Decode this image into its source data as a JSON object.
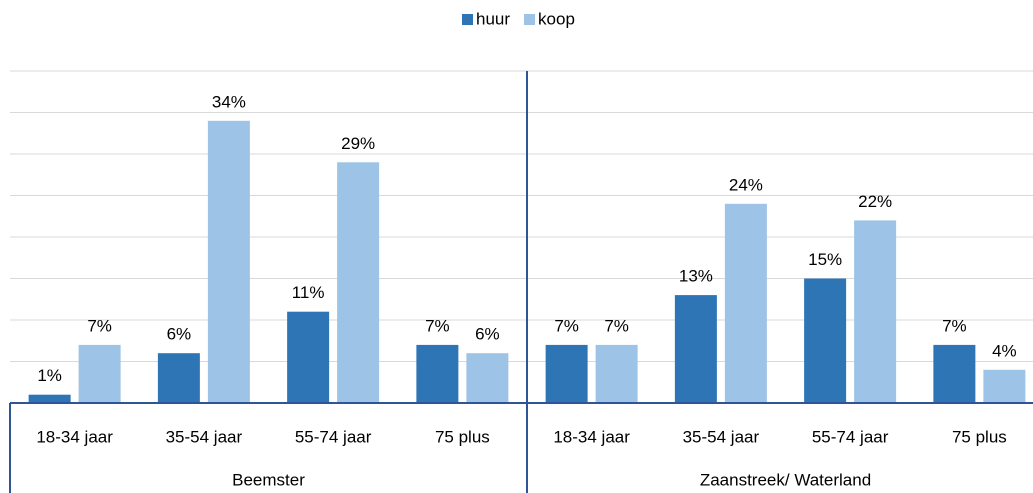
{
  "chart_data": {
    "type": "bar",
    "groups": [
      "Beemster",
      "Zaanstreek/ Waterland"
    ],
    "categories": [
      "18-34 jaar",
      "35-54 jaar",
      "55-74 jaar",
      "75 plus",
      "18-34 jaar",
      "35-54 jaar",
      "55-74 jaar",
      "75 plus"
    ],
    "series": [
      {
        "name": "huur",
        "color": "#2e75b6",
        "values": [
          1,
          6,
          11,
          7,
          7,
          13,
          15,
          7
        ],
        "value_labels": [
          "1%",
          "6%",
          "11%",
          "7%",
          "7%",
          "13%",
          "15%",
          "7%"
        ]
      },
      {
        "name": "koop",
        "color": "#9dc3e6",
        "values": [
          7,
          34,
          29,
          6,
          7,
          24,
          22,
          4
        ],
        "value_labels": [
          "7%",
          "34%",
          "29%",
          "6%",
          "7%",
          "24%",
          "22%",
          "4%"
        ]
      }
    ],
    "ylim": [
      0,
      40
    ],
    "yticks": [
      0,
      5,
      10,
      15,
      20,
      25,
      30,
      35,
      40
    ],
    "grid": true,
    "legend": "top"
  }
}
